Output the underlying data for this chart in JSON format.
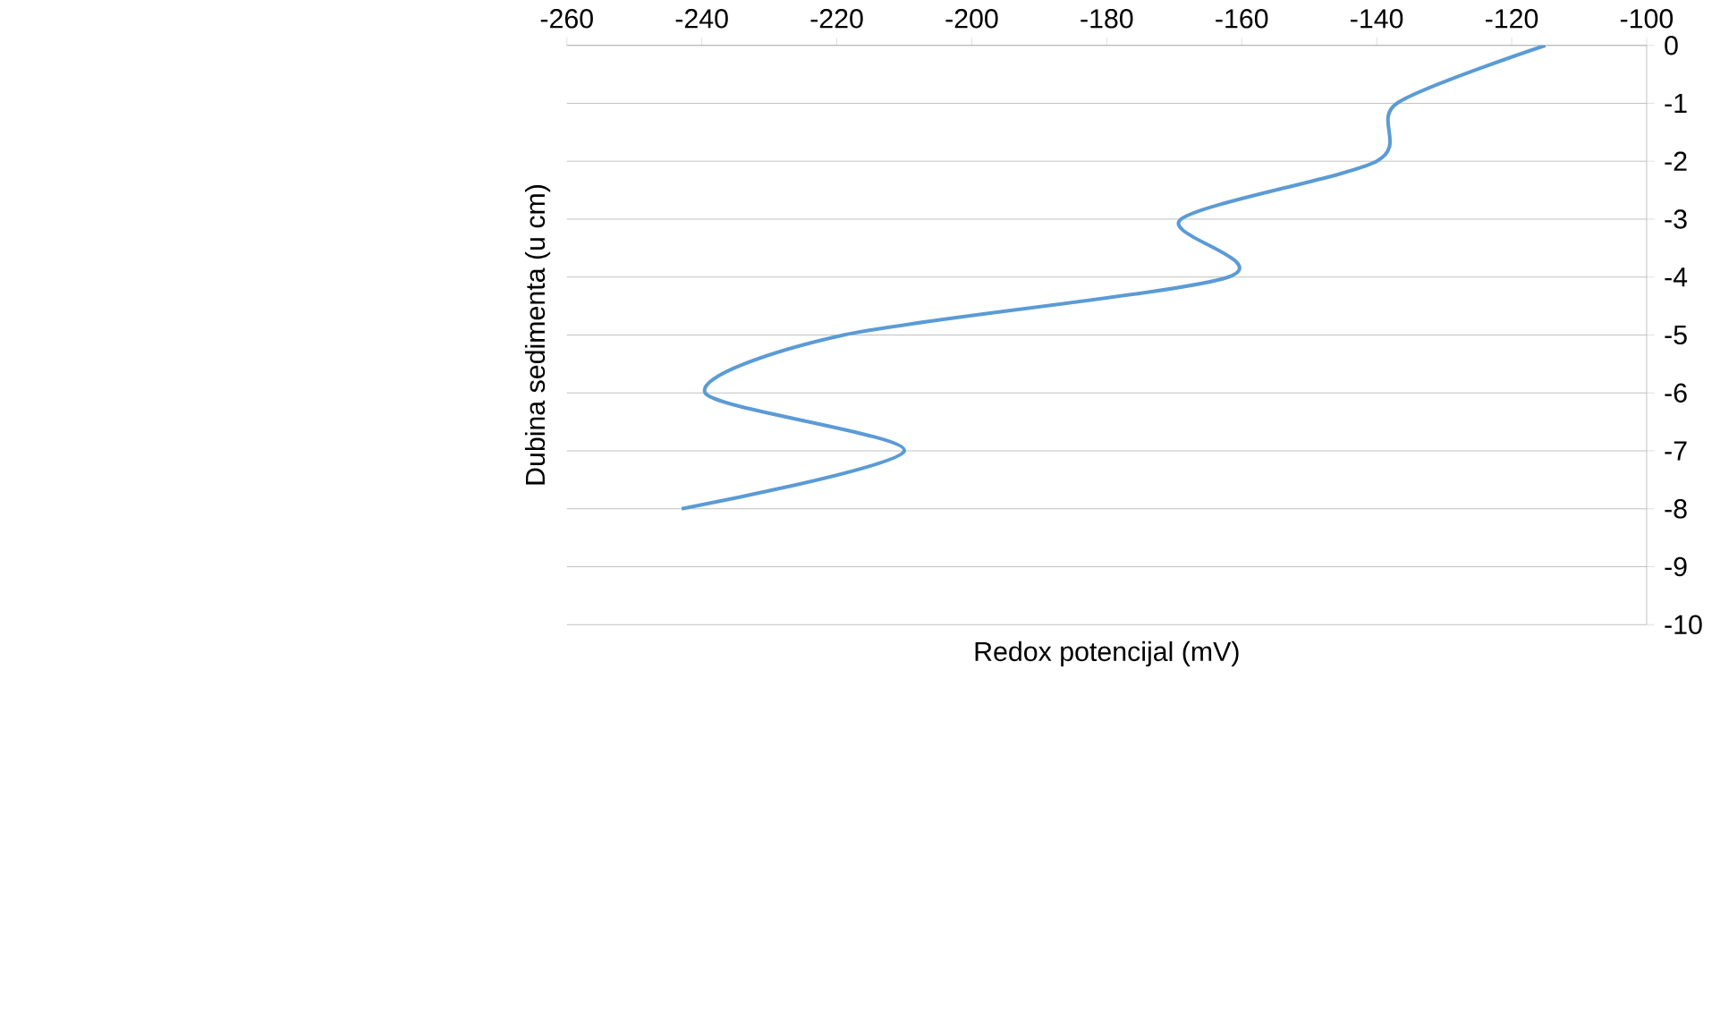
{
  "chart_data": {
    "type": "line",
    "xlabel": "Redox potencijal (mV)",
    "ylabel": "Dubina sedimenta  (u cm)",
    "series": [
      {
        "color": "#5b9bd5",
        "x": [
          -115,
          -137,
          -140,
          -169,
          -162,
          -219,
          -239.5,
          -210,
          -243
        ],
        "values": [
          0,
          -1,
          -2,
          -3,
          -4,
          -5,
          -6,
          -7,
          -8
        ]
      }
    ],
    "xlim": [
      -260,
      -100
    ],
    "xticks": [
      -260,
      -240,
      -220,
      -200,
      -180,
      -160,
      -140,
      -120,
      -100
    ],
    "ylim": [
      -10,
      0
    ],
    "yticks": [
      -10,
      -9,
      -8,
      -7,
      -6,
      -5,
      -4,
      -3,
      -2,
      -1,
      0
    ],
    "grid": "y",
    "marker": "none",
    "line_style": "solid"
  }
}
